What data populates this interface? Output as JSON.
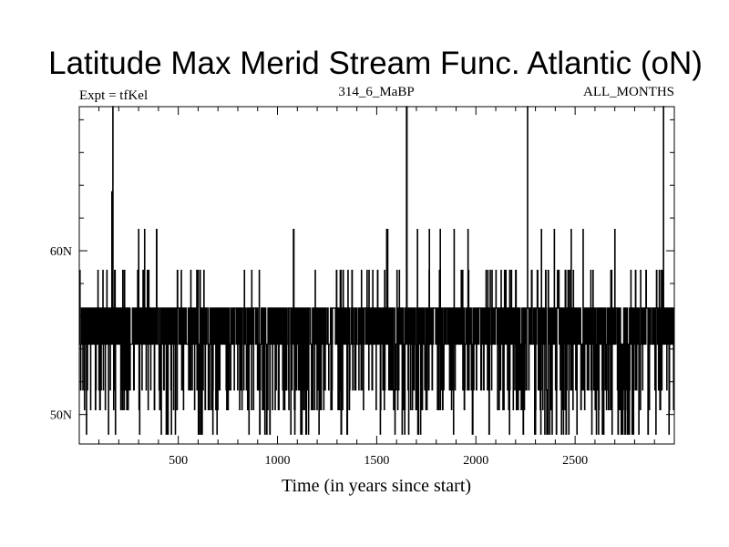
{
  "chart_data": {
    "type": "line",
    "title": "Latitude Max Merid Stream Func. Atlantic (oN)",
    "subtitle_left": "Expt = tfKel",
    "subtitle_center": "314_6_MaBP",
    "subtitle_right": "ALL_MONTHS",
    "xlabel": "Time (in years since start)",
    "ylabel": "",
    "xlim": [
      1,
      3000
    ],
    "ylim": [
      48.2,
      68.8
    ],
    "x_ticks": [
      500,
      1000,
      1500,
      2000,
      2500
    ],
    "x_tick_labels": [
      "500",
      "1000",
      "1500",
      "2000",
      "2500"
    ],
    "y_ticks": [
      50,
      60
    ],
    "y_tick_labels": [
      "50N",
      "60N"
    ],
    "grid": false,
    "legend": "none",
    "series": [
      {
        "levels": [
          48.8,
          50.3,
          51.5,
          54.3,
          56.5,
          58.8,
          61.3,
          63.6,
          68.8
        ],
        "peaks": [
          {
            "x": 170,
            "y": 68.8
          },
          {
            "x": 165,
            "y": 63.6
          },
          {
            "x": 140,
            "y": 58.8
          },
          {
            "x": 300,
            "y": 61.3
          },
          {
            "x": 330,
            "y": 61.3
          },
          {
            "x": 390,
            "y": 61.3
          },
          {
            "x": 495,
            "y": 58.8
          },
          {
            "x": 610,
            "y": 58.8
          },
          {
            "x": 870,
            "y": 58.8
          },
          {
            "x": 1080,
            "y": 61.3
          },
          {
            "x": 1190,
            "y": 58.8
          },
          {
            "x": 1330,
            "y": 58.8
          },
          {
            "x": 1480,
            "y": 58.8
          },
          {
            "x": 1550,
            "y": 61.3
          },
          {
            "x": 1650,
            "y": 68.8
          },
          {
            "x": 1705,
            "y": 61.3
          },
          {
            "x": 1765,
            "y": 61.3
          },
          {
            "x": 1820,
            "y": 61.3
          },
          {
            "x": 1890,
            "y": 61.3
          },
          {
            "x": 1960,
            "y": 61.3
          },
          {
            "x": 2060,
            "y": 58.8
          },
          {
            "x": 2170,
            "y": 58.8
          },
          {
            "x": 2260,
            "y": 68.8
          },
          {
            "x": 2330,
            "y": 61.3
          },
          {
            "x": 2395,
            "y": 61.3
          },
          {
            "x": 2480,
            "y": 61.3
          },
          {
            "x": 2540,
            "y": 61.3
          },
          {
            "x": 2680,
            "y": 58.8
          },
          {
            "x": 2700,
            "y": 61.3
          },
          {
            "x": 2830,
            "y": 58.8
          },
          {
            "x": 2935,
            "y": 58.8
          },
          {
            "x": 2945,
            "y": 68.8
          }
        ]
      }
    ]
  }
}
